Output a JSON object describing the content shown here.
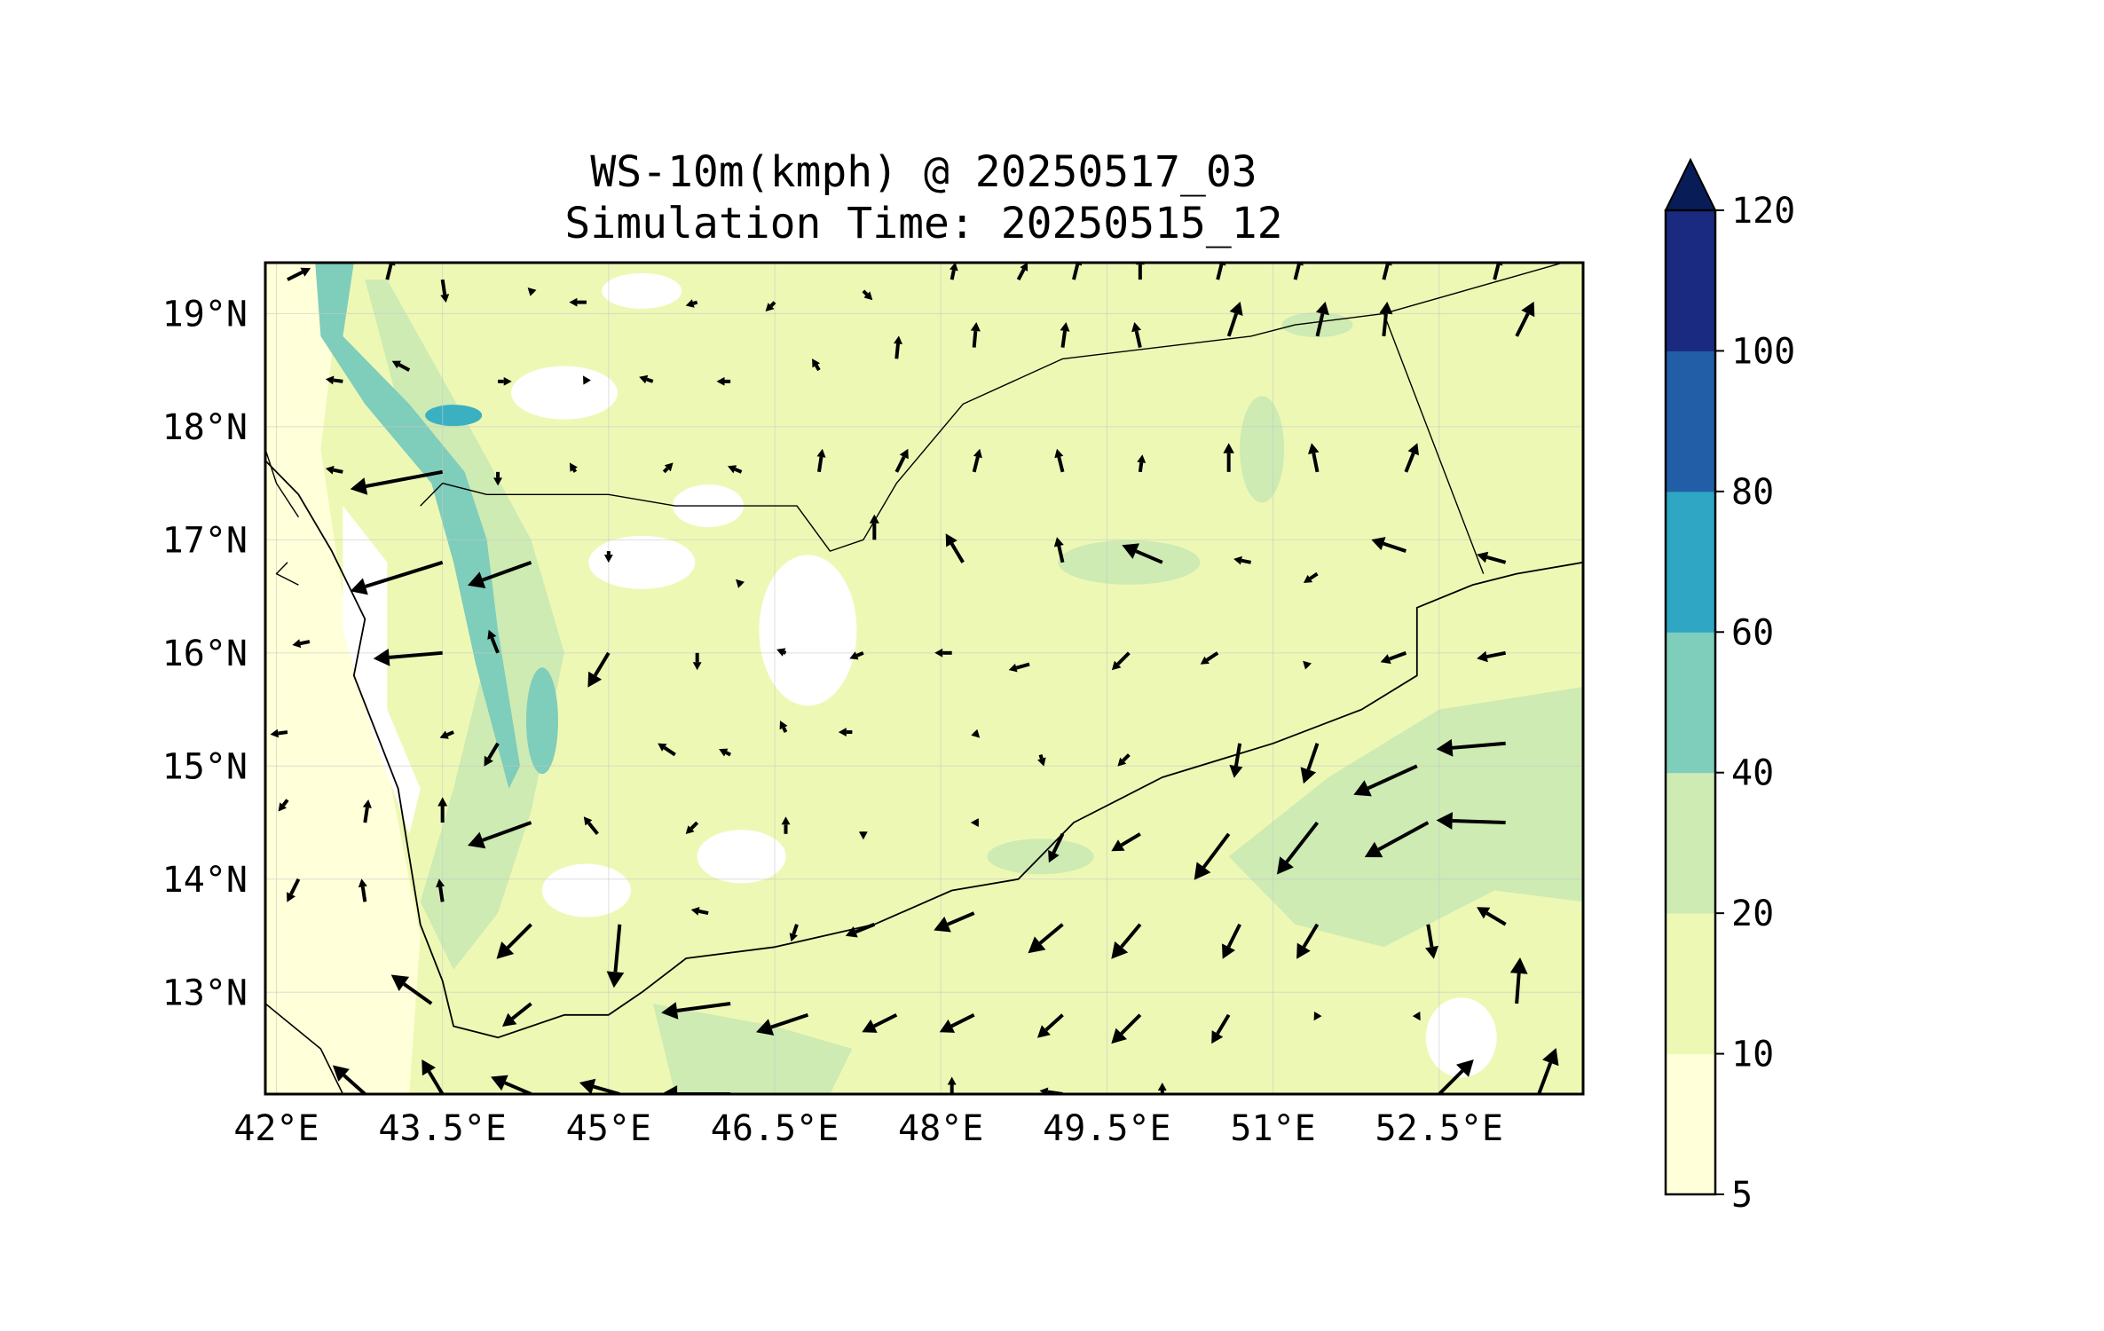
{
  "chart_data": {
    "type": "map-contour-with-wind-vectors",
    "title": "WS-10m(kmph) @ 20250517_03",
    "subtitle": "Simulation Time: 20250515_12",
    "x_ticks": [
      {
        "value": 42.0,
        "label": "42°E"
      },
      {
        "value": 43.5,
        "label": "43.5°E"
      },
      {
        "value": 45.0,
        "label": "45°E"
      },
      {
        "value": 46.5,
        "label": "46.5°E"
      },
      {
        "value": 48.0,
        "label": "48°E"
      },
      {
        "value": 49.5,
        "label": "49.5°E"
      },
      {
        "value": 51.0,
        "label": "51°E"
      },
      {
        "value": 52.5,
        "label": "52.5°E"
      }
    ],
    "y_ticks": [
      {
        "value": 13.0,
        "label": "13°N"
      },
      {
        "value": 14.0,
        "label": "14°N"
      },
      {
        "value": 15.0,
        "label": "15°N"
      },
      {
        "value": 16.0,
        "label": "16°N"
      },
      {
        "value": 17.0,
        "label": "17°N"
      },
      {
        "value": 18.0,
        "label": "18°N"
      },
      {
        "value": 19.0,
        "label": "19°N"
      }
    ],
    "lon_range": [
      41.9,
      53.8
    ],
    "lat_range": [
      12.1,
      19.45
    ],
    "colorbar": {
      "levels": [
        5,
        10,
        20,
        40,
        60,
        80,
        100,
        120
      ],
      "labels": [
        "5",
        "10",
        "20",
        "40",
        "60",
        "80",
        "100",
        "120"
      ],
      "colors": [
        "#ffffd9",
        "#eef8b5",
        "#cdebb3",
        "#7fcdbb",
        "#2ea6c4",
        "#225ea8",
        "#1a2a80"
      ],
      "extend_color": "#081d58",
      "extend": "max"
    },
    "field_colors": {
      "ocean": "#ffffff",
      "low": "#ffffd9",
      "mid": "#eef8b5",
      "high": "#cdebb3",
      "strong": "#7fcdbb"
    },
    "wind_vectors": [
      {
        "lon": 42.1,
        "lat": 19.3,
        "u": 20,
        "v": 10
      },
      {
        "lon": 43.0,
        "lat": 19.3,
        "u": 5,
        "v": 20
      },
      {
        "lon": 43.5,
        "lat": 19.3,
        "u": 3,
        "v": -20
      },
      {
        "lon": 44.3,
        "lat": 19.2,
        "u": -3,
        "v": 3
      },
      {
        "lon": 44.8,
        "lat": 19.1,
        "u": -15,
        "v": 0
      },
      {
        "lon": 45.8,
        "lat": 19.1,
        "u": -10,
        "v": -3
      },
      {
        "lon": 46.5,
        "lat": 19.1,
        "u": -8,
        "v": -8
      },
      {
        "lon": 47.3,
        "lat": 19.2,
        "u": 8,
        "v": -8
      },
      {
        "lon": 48.1,
        "lat": 19.3,
        "u": 3,
        "v": 15
      },
      {
        "lon": 48.7,
        "lat": 19.3,
        "u": 8,
        "v": 15
      },
      {
        "lon": 49.2,
        "lat": 19.3,
        "u": 5,
        "v": 20
      },
      {
        "lon": 49.8,
        "lat": 19.3,
        "u": 0,
        "v": 20
      },
      {
        "lon": 50.5,
        "lat": 19.3,
        "u": 5,
        "v": 20
      },
      {
        "lon": 51.2,
        "lat": 19.3,
        "u": 5,
        "v": 20
      },
      {
        "lon": 52.0,
        "lat": 19.3,
        "u": 5,
        "v": 20
      },
      {
        "lon": 53.0,
        "lat": 19.3,
        "u": 5,
        "v": 20
      },
      {
        "lon": 42.6,
        "lat": 18.4,
        "u": -15,
        "v": 2
      },
      {
        "lon": 43.2,
        "lat": 18.5,
        "u": -15,
        "v": 8
      },
      {
        "lon": 44.0,
        "lat": 18.4,
        "u": 12,
        "v": 0
      },
      {
        "lon": 44.8,
        "lat": 18.4,
        "u": -3,
        "v": 5
      },
      {
        "lon": 45.4,
        "lat": 18.4,
        "u": -12,
        "v": 4
      },
      {
        "lon": 46.1,
        "lat": 18.4,
        "u": -12,
        "v": 0
      },
      {
        "lon": 46.9,
        "lat": 18.5,
        "u": -6,
        "v": 10
      },
      {
        "lon": 47.6,
        "lat": 18.6,
        "u": 2,
        "v": 20
      },
      {
        "lon": 48.3,
        "lat": 18.7,
        "u": 2,
        "v": 22
      },
      {
        "lon": 49.1,
        "lat": 18.7,
        "u": 3,
        "v": 22
      },
      {
        "lon": 49.8,
        "lat": 18.7,
        "u": -5,
        "v": 22
      },
      {
        "lon": 50.6,
        "lat": 18.8,
        "u": 10,
        "v": 30
      },
      {
        "lon": 51.4,
        "lat": 18.8,
        "u": 7,
        "v": 30
      },
      {
        "lon": 52.0,
        "lat": 18.8,
        "u": 3,
        "v": 30
      },
      {
        "lon": 53.2,
        "lat": 18.8,
        "u": 15,
        "v": 30
      },
      {
        "lon": 42.6,
        "lat": 17.6,
        "u": -15,
        "v": 3
      },
      {
        "lon": 44.0,
        "lat": 17.6,
        "u": 0,
        "v": -12
      },
      {
        "lon": 44.7,
        "lat": 17.6,
        "u": -5,
        "v": 8
      },
      {
        "lon": 45.5,
        "lat": 17.6,
        "u": 8,
        "v": 8
      },
      {
        "lon": 46.2,
        "lat": 17.6,
        "u": -12,
        "v": 5
      },
      {
        "lon": 46.9,
        "lat": 17.6,
        "u": 3,
        "v": 20
      },
      {
        "lon": 47.6,
        "lat": 17.6,
        "u": 10,
        "v": 20
      },
      {
        "lon": 48.3,
        "lat": 17.6,
        "u": 5,
        "v": 20
      },
      {
        "lon": 49.1,
        "lat": 17.6,
        "u": -5,
        "v": 20
      },
      {
        "lon": 49.8,
        "lat": 17.6,
        "u": 2,
        "v": 15
      },
      {
        "lon": 50.6,
        "lat": 17.6,
        "u": 0,
        "v": 25
      },
      {
        "lon": 51.4,
        "lat": 17.6,
        "u": -5,
        "v": 25
      },
      {
        "lon": 52.2,
        "lat": 17.6,
        "u": 10,
        "v": 25
      },
      {
        "lon": 43.5,
        "lat": 17.6,
        "u": -80,
        "v": -15
      },
      {
        "lon": 43.5,
        "lat": 16.8,
        "u": -80,
        "v": -25
      },
      {
        "lon": 44.3,
        "lat": 16.8,
        "u": -55,
        "v": -20
      },
      {
        "lon": 43.5,
        "lat": 16.0,
        "u": -60,
        "v": -5
      },
      {
        "lon": 42.3,
        "lat": 16.1,
        "u": -15,
        "v": -3
      },
      {
        "lon": 42.1,
        "lat": 14.7,
        "u": -8,
        "v": -10
      },
      {
        "lon": 44.3,
        "lat": 14.5,
        "u": -55,
        "v": -20
      },
      {
        "lon": 44.0,
        "lat": 16.0,
        "u": -8,
        "v": 20
      },
      {
        "lon": 45.0,
        "lat": 16.0,
        "u": -18,
        "v": -30
      },
      {
        "lon": 44.0,
        "lat": 15.2,
        "u": -12,
        "v": -20
      },
      {
        "lon": 45.8,
        "lat": 16.0,
        "u": 0,
        "v": -15
      },
      {
        "lon": 45.0,
        "lat": 16.9,
        "u": 0,
        "v": -10
      },
      {
        "lon": 46.2,
        "lat": 16.6,
        "u": -5,
        "v": 5
      },
      {
        "lon": 47.4,
        "lat": 17.0,
        "u": 0,
        "v": 22
      },
      {
        "lon": 48.2,
        "lat": 16.8,
        "u": -15,
        "v": 25
      },
      {
        "lon": 49.1,
        "lat": 16.8,
        "u": -5,
        "v": 22
      },
      {
        "lon": 50.0,
        "lat": 16.8,
        "u": -35,
        "v": 15
      },
      {
        "lon": 50.8,
        "lat": 16.8,
        "u": -15,
        "v": 3
      },
      {
        "lon": 51.4,
        "lat": 16.7,
        "u": -12,
        "v": -8
      },
      {
        "lon": 52.2,
        "lat": 16.9,
        "u": -30,
        "v": 10
      },
      {
        "lon": 53.1,
        "lat": 16.8,
        "u": -25,
        "v": 7
      },
      {
        "lon": 46.6,
        "lat": 16.0,
        "u": -8,
        "v": 3
      },
      {
        "lon": 47.3,
        "lat": 16.0,
        "u": -12,
        "v": -5
      },
      {
        "lon": 48.1,
        "lat": 16.0,
        "u": -15,
        "v": 0
      },
      {
        "lon": 48.8,
        "lat": 15.9,
        "u": -18,
        "v": -5
      },
      {
        "lon": 49.7,
        "lat": 16.0,
        "u": -15,
        "v": -15
      },
      {
        "lon": 50.5,
        "lat": 16.0,
        "u": -15,
        "v": -10
      },
      {
        "lon": 51.3,
        "lat": 15.9,
        "u": -3,
        "v": 3
      },
      {
        "lon": 52.2,
        "lat": 16.0,
        "u": -22,
        "v": -8
      },
      {
        "lon": 53.1,
        "lat": 16.0,
        "u": -25,
        "v": -5
      },
      {
        "lon": 45.6,
        "lat": 15.1,
        "u": -15,
        "v": 10
      },
      {
        "lon": 46.1,
        "lat": 15.1,
        "u": -10,
        "v": 5
      },
      {
        "lon": 46.6,
        "lat": 15.3,
        "u": -5,
        "v": 10
      },
      {
        "lon": 47.2,
        "lat": 15.3,
        "u": -12,
        "v": 0
      },
      {
        "lon": 48.3,
        "lat": 15.3,
        "u": 5,
        "v": -5
      },
      {
        "lon": 48.9,
        "lat": 15.1,
        "u": 3,
        "v": -10
      },
      {
        "lon": 49.7,
        "lat": 15.1,
        "u": -10,
        "v": -10
      },
      {
        "lon": 50.7,
        "lat": 15.2,
        "u": -5,
        "v": -30
      },
      {
        "lon": 51.4,
        "lat": 15.2,
        "u": -12,
        "v": -35
      },
      {
        "lon": 53.1,
        "lat": 15.2,
        "u": -60,
        "v": -5
      },
      {
        "lon": 52.3,
        "lat": 15.0,
        "u": -55,
        "v": -25
      },
      {
        "lon": 42.1,
        "lat": 15.3,
        "u": -15,
        "v": -2
      },
      {
        "lon": 42.8,
        "lat": 14.5,
        "u": 3,
        "v": 20
      },
      {
        "lon": 43.5,
        "lat": 14.5,
        "u": 0,
        "v": 22
      },
      {
        "lon": 43.6,
        "lat": 15.3,
        "u": -12,
        "v": -5
      },
      {
        "lon": 44.9,
        "lat": 14.4,
        "u": -12,
        "v": 15
      },
      {
        "lon": 45.8,
        "lat": 14.5,
        "u": -10,
        "v": -10
      },
      {
        "lon": 46.6,
        "lat": 14.4,
        "u": 0,
        "v": 15
      },
      {
        "lon": 47.3,
        "lat": 14.4,
        "u": 0,
        "v": -5
      },
      {
        "lon": 48.3,
        "lat": 14.5,
        "u": -3,
        "v": 0
      },
      {
        "lon": 49.1,
        "lat": 14.4,
        "u": -12,
        "v": -25
      },
      {
        "lon": 49.8,
        "lat": 14.4,
        "u": -25,
        "v": -15
      },
      {
        "lon": 50.6,
        "lat": 14.4,
        "u": -30,
        "v": -40
      },
      {
        "lon": 51.4,
        "lat": 14.5,
        "u": -35,
        "v": -45
      },
      {
        "lon": 52.4,
        "lat": 14.5,
        "u": -55,
        "v": -30
      },
      {
        "lon": 53.1,
        "lat": 14.5,
        "u": -60,
        "v": 2
      },
      {
        "lon": 42.2,
        "lat": 14.0,
        "u": -10,
        "v": -20
      },
      {
        "lon": 42.8,
        "lat": 13.8,
        "u": -3,
        "v": 20
      },
      {
        "lon": 43.5,
        "lat": 13.8,
        "u": -3,
        "v": 20
      },
      {
        "lon": 44.3,
        "lat": 13.6,
        "u": -30,
        "v": -30
      },
      {
        "lon": 45.1,
        "lat": 13.6,
        "u": -5,
        "v": -55
      },
      {
        "lon": 45.9,
        "lat": 13.7,
        "u": -15,
        "v": 3
      },
      {
        "lon": 46.7,
        "lat": 13.6,
        "u": -5,
        "v": -15
      },
      {
        "lon": 47.4,
        "lat": 13.6,
        "u": -25,
        "v": -10
      },
      {
        "lon": 48.3,
        "lat": 13.7,
        "u": -35,
        "v": -15
      },
      {
        "lon": 49.1,
        "lat": 13.6,
        "u": -30,
        "v": -25
      },
      {
        "lon": 49.8,
        "lat": 13.6,
        "u": -25,
        "v": -30
      },
      {
        "lon": 50.7,
        "lat": 13.6,
        "u": -15,
        "v": -30
      },
      {
        "lon": 51.4,
        "lat": 13.6,
        "u": -18,
        "v": -30
      },
      {
        "lon": 52.4,
        "lat": 13.6,
        "u": 5,
        "v": -30
      },
      {
        "lon": 53.1,
        "lat": 13.6,
        "u": -25,
        "v": 15
      },
      {
        "lon": 53.2,
        "lat": 12.9,
        "u": 3,
        "v": 40
      },
      {
        "lon": 43.4,
        "lat": 12.9,
        "u": -35,
        "v": 25
      },
      {
        "lon": 44.3,
        "lat": 12.9,
        "u": -25,
        "v": -20
      },
      {
        "lon": 46.1,
        "lat": 12.9,
        "u": -60,
        "v": -8
      },
      {
        "lon": 46.8,
        "lat": 12.8,
        "u": -45,
        "v": -15
      },
      {
        "lon": 47.6,
        "lat": 12.8,
        "u": -30,
        "v": -15
      },
      {
        "lon": 48.3,
        "lat": 12.8,
        "u": -30,
        "v": -15
      },
      {
        "lon": 49.1,
        "lat": 12.8,
        "u": -22,
        "v": -20
      },
      {
        "lon": 49.8,
        "lat": 12.8,
        "u": -25,
        "v": -25
      },
      {
        "lon": 50.6,
        "lat": 12.8,
        "u": -15,
        "v": -25
      },
      {
        "lon": 51.4,
        "lat": 12.8,
        "u": -3,
        "v": -5
      },
      {
        "lon": 52.3,
        "lat": 12.8,
        "u": 3,
        "v": -5
      },
      {
        "lon": 42.8,
        "lat": 12.1,
        "u": -28,
        "v": 25
      },
      {
        "lon": 43.5,
        "lat": 12.1,
        "u": -18,
        "v": 30
      },
      {
        "lon": 44.3,
        "lat": 12.1,
        "u": -35,
        "v": 15
      },
      {
        "lon": 45.1,
        "lat": 12.1,
        "u": -35,
        "v": 10
      },
      {
        "lon": 46.1,
        "lat": 12.1,
        "u": -60,
        "v": 0
      },
      {
        "lon": 48.1,
        "lat": 12.1,
        "u": 0,
        "v": 15
      },
      {
        "lon": 49.1,
        "lat": 12.1,
        "u": -20,
        "v": 3
      },
      {
        "lon": 50.0,
        "lat": 12.1,
        "u": 0,
        "v": 10
      },
      {
        "lon": 52.5,
        "lat": 12.1,
        "u": 30,
        "v": 30
      },
      {
        "lon": 53.4,
        "lat": 12.1,
        "u": 15,
        "v": 40
      }
    ]
  }
}
